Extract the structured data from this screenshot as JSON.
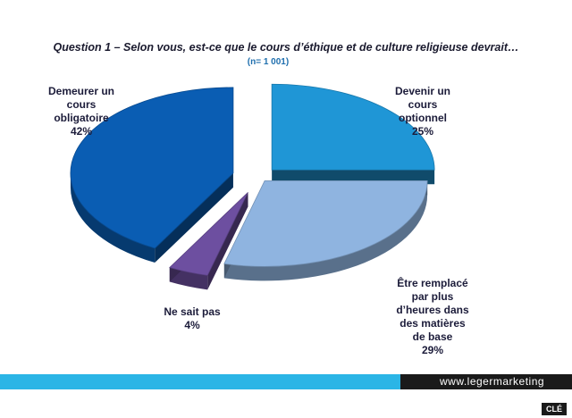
{
  "header_strip": "",
  "chart_data": {
    "type": "pie",
    "title": "Question 1 – Selon vous, est-ce que le cours d’éthique et de culture religieuse devrait…",
    "subtitle": "(n= 1 001)",
    "slices": [
      {
        "label_lines": [
          "Devenir un",
          "cours",
          "optionnel"
        ],
        "value": 25,
        "value_label": "25%",
        "color": "#1f96d6"
      },
      {
        "label_lines": [
          "Être remplacé",
          "par plus",
          "d’heures dans",
          "des matières",
          "de base"
        ],
        "value": 29,
        "value_label": "29%",
        "color": "#8fb4e0"
      },
      {
        "label_lines": [
          "Ne sait pas"
        ],
        "value": 4,
        "value_label": "4%",
        "color": "#6d4fa0"
      },
      {
        "label_lines": [
          "Demeurer un",
          "cours",
          "obligatoire"
        ],
        "value": 42,
        "value_label": "42%",
        "color": "#0a5db3"
      }
    ],
    "legend": "none"
  },
  "footer": {
    "url": "www.legermarketing",
    "badge": "CLÉ"
  }
}
